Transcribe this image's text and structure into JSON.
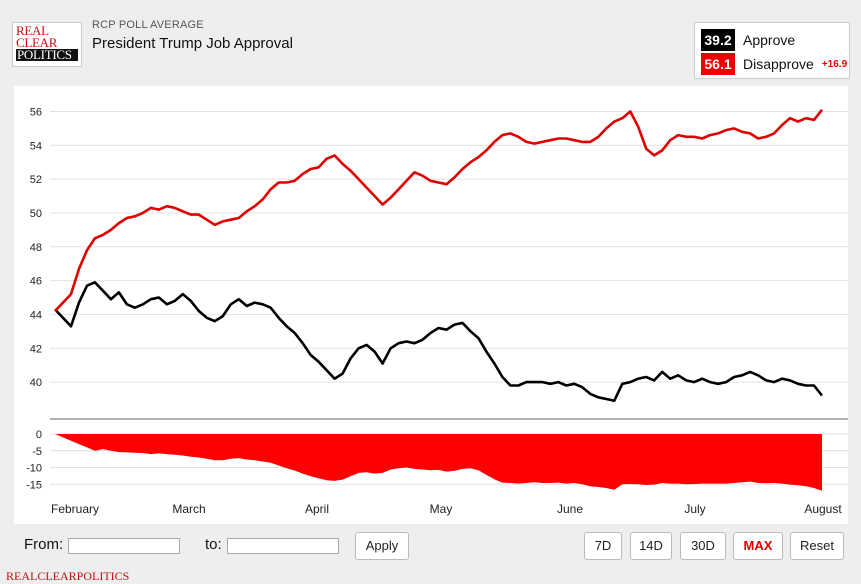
{
  "header": {
    "logo_lines": [
      "REAL",
      "CLEAR",
      "POLITICS"
    ],
    "subtitle": "RCP POLL AVERAGE",
    "title": "President Trump Job Approval"
  },
  "legend": {
    "approve": {
      "value": "39.2",
      "label": "Approve",
      "color": "#000000"
    },
    "disapprove": {
      "value": "56.1",
      "label": "Disapprove",
      "spread": "+16.9",
      "color": "#e00000"
    }
  },
  "controls": {
    "from_label": "From:",
    "to_label": "to:",
    "apply_label": "Apply",
    "ranges": [
      "7D",
      "14D",
      "30D",
      "MAX",
      "Reset"
    ],
    "active_range": "MAX"
  },
  "footer": "REALCLEARPOLITICS",
  "chart_data": [
    {
      "type": "line",
      "title": "",
      "x_ticks": [
        "February",
        "March",
        "April",
        "May",
        "June",
        "July",
        "August"
      ],
      "ylim": [
        39,
        56.5
      ],
      "y_ticks": [
        40,
        42,
        44,
        46,
        48,
        50,
        52,
        54,
        56
      ],
      "series": [
        {
          "name": "Approve",
          "color": "#000000",
          "values": [
            44.3,
            43.8,
            43.3,
            44.7,
            45.7,
            45.9,
            45.4,
            44.9,
            45.3,
            44.6,
            44.4,
            44.6,
            44.9,
            45.0,
            44.6,
            44.8,
            45.2,
            44.8,
            44.2,
            43.8,
            43.6,
            43.9,
            44.6,
            44.9,
            44.5,
            44.7,
            44.6,
            44.4,
            43.8,
            43.3,
            42.9,
            42.3,
            41.6,
            41.2,
            40.7,
            40.2,
            40.5,
            41.4,
            42.0,
            42.2,
            41.8,
            41.1,
            42.0,
            42.3,
            42.4,
            42.3,
            42.5,
            42.9,
            43.2,
            43.1,
            43.4,
            43.5,
            43.0,
            42.6,
            41.8,
            41.1,
            40.3,
            39.8,
            39.8,
            40.0,
            40.0,
            40.0,
            39.9,
            40.0,
            39.8,
            39.9,
            39.7,
            39.3,
            39.1,
            39.0,
            38.9,
            39.9,
            40.0,
            40.2,
            40.3,
            40.1,
            40.6,
            40.2,
            40.4,
            40.1,
            40.0,
            40.2,
            40.0,
            39.9,
            40.0,
            40.3,
            40.4,
            40.6,
            40.4,
            40.1,
            40.0,
            40.2,
            40.1,
            39.9,
            39.8,
            39.8,
            39.2
          ]
        },
        {
          "name": "Disapprove",
          "color": "#e00000",
          "values": [
            44.2,
            44.7,
            45.2,
            46.7,
            47.8,
            48.5,
            48.7,
            49.0,
            49.4,
            49.7,
            49.8,
            50.0,
            50.3,
            50.2,
            50.4,
            50.3,
            50.1,
            49.9,
            49.9,
            49.6,
            49.3,
            49.5,
            49.6,
            49.7,
            50.1,
            50.4,
            50.8,
            51.4,
            51.8,
            51.8,
            51.9,
            52.3,
            52.6,
            52.7,
            53.2,
            53.4,
            52.9,
            52.5,
            52.0,
            51.5,
            51.0,
            50.5,
            50.9,
            51.4,
            51.9,
            52.4,
            52.2,
            51.9,
            51.8,
            51.7,
            52.1,
            52.6,
            53.0,
            53.3,
            53.7,
            54.2,
            54.6,
            54.7,
            54.5,
            54.2,
            54.1,
            54.2,
            54.3,
            54.4,
            54.4,
            54.3,
            54.2,
            54.2,
            54.5,
            55.0,
            55.4,
            55.6,
            56.0,
            55.1,
            53.8,
            53.4,
            53.7,
            54.3,
            54.6,
            54.5,
            54.5,
            54.4,
            54.6,
            54.7,
            54.9,
            55.0,
            54.8,
            54.7,
            54.4,
            54.5,
            54.7,
            55.2,
            55.6,
            55.4,
            55.6,
            55.5,
            56.1
          ]
        }
      ]
    },
    {
      "type": "area",
      "title": "",
      "name": "Spread",
      "color": "#ff0000",
      "ylim": [
        -17,
        0
      ],
      "y_ticks": [
        0,
        -5,
        -10,
        -15
      ],
      "values": [
        0,
        -1,
        -2,
        -3,
        -4,
        -5,
        -4.5,
        -5,
        -5.4,
        -5.5,
        -5.6,
        -5.7,
        -6,
        -5.8,
        -6,
        -6.2,
        -6.4,
        -6.8,
        -7,
        -7.4,
        -7.8,
        -7.8,
        -7.4,
        -7.2,
        -7.6,
        -7.8,
        -8.2,
        -8.6,
        -9.4,
        -10.2,
        -10.9,
        -11.8,
        -12.6,
        -13.2,
        -13.8,
        -14,
        -13.6,
        -12.6,
        -11.6,
        -11.4,
        -11.8,
        -11.6,
        -10.6,
        -10.2,
        -10,
        -10.4,
        -10.6,
        -10.8,
        -10.7,
        -11.2,
        -11,
        -10.4,
        -10.2,
        -10.8,
        -12.2,
        -13.5,
        -14.5,
        -14.6,
        -14.8,
        -14.6,
        -14.4,
        -14.6,
        -14.6,
        -14.5,
        -14.8,
        -14.6,
        -15,
        -15.6,
        -15.8,
        -16.1,
        -16.6,
        -15,
        -14.9,
        -15,
        -15.2,
        -15.1,
        -14.6,
        -14.8,
        -14.8,
        -15,
        -14.9,
        -14.8,
        -14.8,
        -14.8,
        -14.8,
        -14.6,
        -14.4,
        -14.2,
        -14.6,
        -14.7,
        -14.6,
        -14.8,
        -15.1,
        -15.3,
        -15.6,
        -16.1,
        -16.9
      ]
    }
  ]
}
